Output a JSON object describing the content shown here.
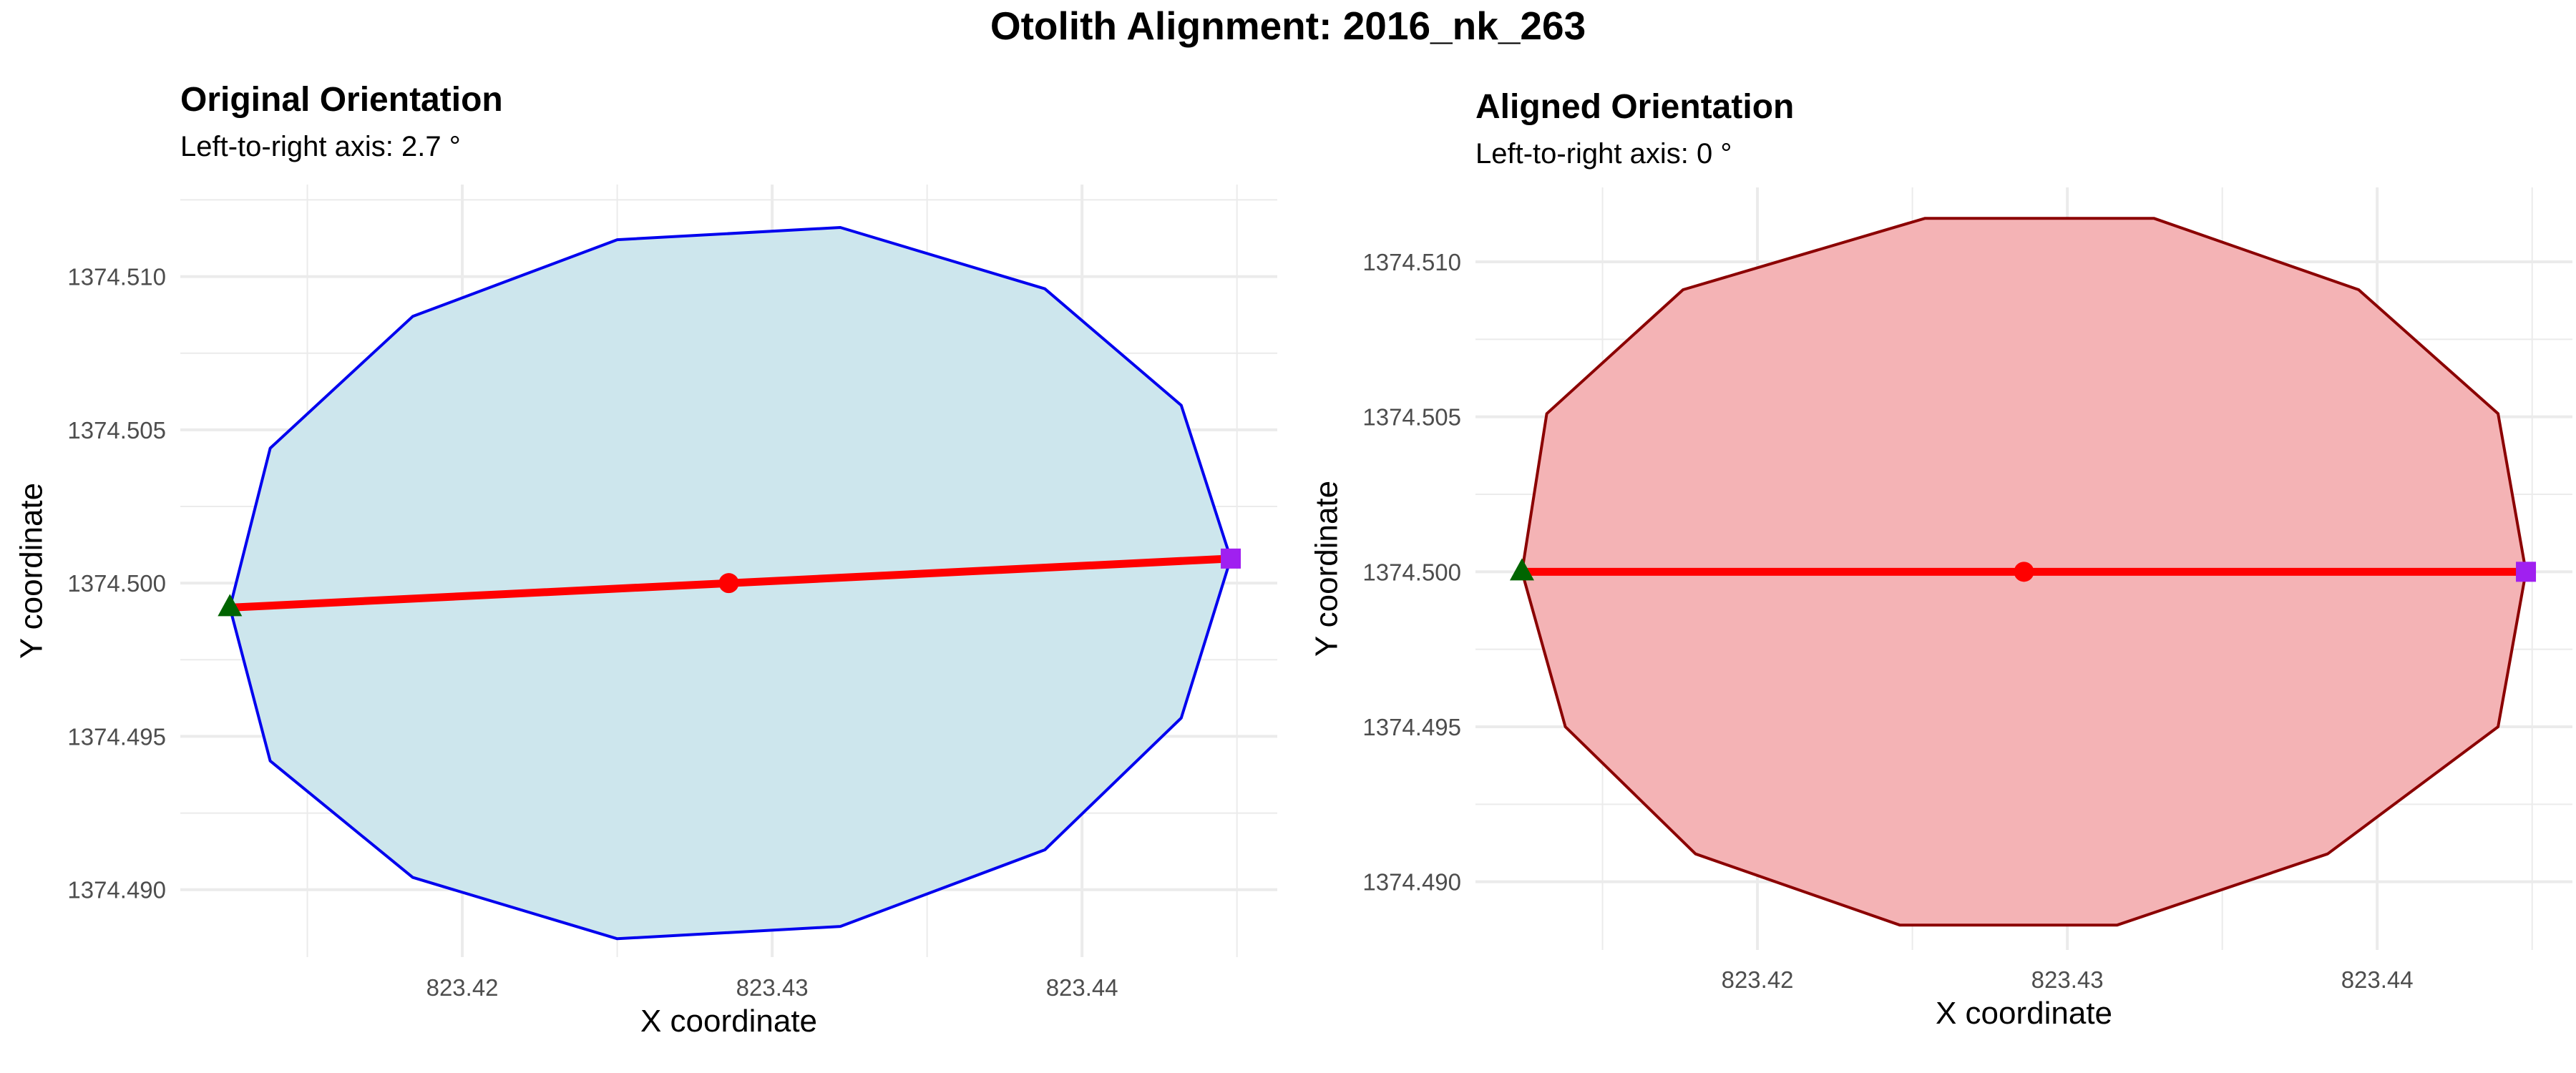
{
  "figure_title": "Otolith Alignment: 2016_nk_263",
  "colors": {
    "grid": "#ebebeb",
    "tick_text": "#4d4d4d",
    "axis_line": "#ff0000",
    "center_point": "#ff0000",
    "start_marker": "#006400",
    "end_marker": "#a020f0"
  },
  "chart_data": [
    {
      "type": "polygon",
      "title": "Original Orientation",
      "subtitle": "Left-to-right axis: 2.7 °",
      "xlabel": "X coordinate",
      "ylabel": "Y coordinate",
      "xlim": [
        823.4109,
        823.4463
      ],
      "ylim": [
        1374.4878,
        1374.513
      ],
      "xticks": [
        823.42,
        823.43,
        823.44
      ],
      "xtick_labels": [
        "823.42",
        "823.43",
        "823.44"
      ],
      "yticks": [
        1374.49,
        1374.495,
        1374.5,
        1374.505,
        1374.51
      ],
      "ytick_labels": [
        "1374.490",
        "1374.495",
        "1374.500",
        "1374.505",
        "1374.510"
      ],
      "grid": true,
      "fill_color": "#cde6ed",
      "outline_color": "#0000ee",
      "outline": [
        {
          "x": 823.4125,
          "y": 1374.4992
        },
        {
          "x": 823.4138,
          "y": 1374.5044
        },
        {
          "x": 823.4184,
          "y": 1374.5087
        },
        {
          "x": 823.425,
          "y": 1374.5112
        },
        {
          "x": 823.4322,
          "y": 1374.5116
        },
        {
          "x": 823.4388,
          "y": 1374.5096
        },
        {
          "x": 823.4432,
          "y": 1374.5058
        },
        {
          "x": 823.4448,
          "y": 1374.5008
        },
        {
          "x": 823.4432,
          "y": 1374.4956
        },
        {
          "x": 823.4388,
          "y": 1374.4913
        },
        {
          "x": 823.4322,
          "y": 1374.4888
        },
        {
          "x": 823.425,
          "y": 1374.4884
        },
        {
          "x": 823.4184,
          "y": 1374.4904
        },
        {
          "x": 823.4138,
          "y": 1374.4942
        }
      ],
      "axis_line": {
        "x1": 823.4125,
        "y1": 1374.4992,
        "x2": 823.4448,
        "y2": 1374.5008
      },
      "center": {
        "x": 823.4286,
        "y": 1374.5
      },
      "start_point": {
        "x": 823.4125,
        "y": 1374.4992
      },
      "end_point": {
        "x": 823.4448,
        "y": 1374.5008
      }
    },
    {
      "type": "polygon",
      "title": "Aligned Orientation",
      "subtitle": "Left-to-right axis: 0 °",
      "xlabel": "X coordinate",
      "ylabel": "Y coordinate",
      "xlim": [
        823.4109,
        823.4463
      ],
      "ylim": [
        1374.4878,
        1374.5124
      ],
      "xticks": [
        823.42,
        823.43,
        823.44
      ],
      "xtick_labels": [
        "823.42",
        "823.43",
        "823.44"
      ],
      "yticks": [
        1374.49,
        1374.495,
        1374.5,
        1374.505,
        1374.51
      ],
      "ytick_labels": [
        "1374.490",
        "1374.495",
        "1374.500",
        "1374.505",
        "1374.510"
      ],
      "grid": true,
      "fill_color": "#f4b3b5",
      "outline_color": "#8b0000",
      "outline": [
        {
          "x": 823.4124,
          "y": 1374.5
        },
        {
          "x": 823.4132,
          "y": 1374.5051
        },
        {
          "x": 823.4176,
          "y": 1374.5091
        },
        {
          "x": 823.4254,
          "y": 1374.5114
        },
        {
          "x": 823.4328,
          "y": 1374.5114
        },
        {
          "x": 823.4394,
          "y": 1374.5091
        },
        {
          "x": 823.4439,
          "y": 1374.5051
        },
        {
          "x": 823.4448,
          "y": 1374.5
        },
        {
          "x": 823.4439,
          "y": 1374.495
        },
        {
          "x": 823.4384,
          "y": 1374.4909
        },
        {
          "x": 823.4316,
          "y": 1374.4886
        },
        {
          "x": 823.4246,
          "y": 1374.4886
        },
        {
          "x": 823.418,
          "y": 1374.4909
        },
        {
          "x": 823.4138,
          "y": 1374.495
        }
      ],
      "axis_line": {
        "x1": 823.4124,
        "y1": 1374.5,
        "x2": 823.4448,
        "y2": 1374.5
      },
      "center": {
        "x": 823.4286,
        "y": 1374.5
      },
      "start_point": {
        "x": 823.4124,
        "y": 1374.5
      },
      "end_point": {
        "x": 823.4448,
        "y": 1374.5
      }
    }
  ]
}
